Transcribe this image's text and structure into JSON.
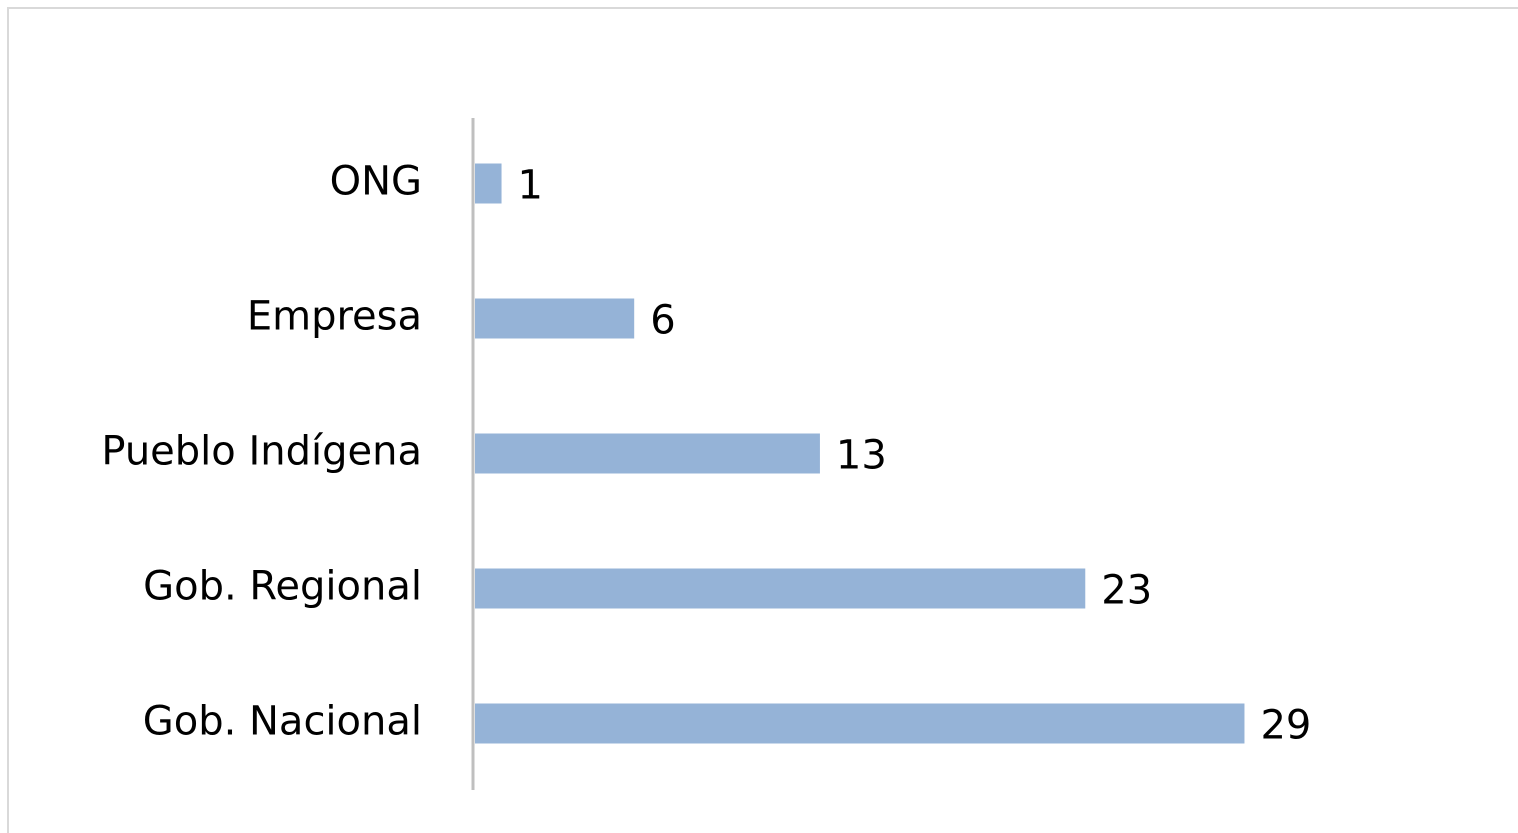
{
  "chart_data": {
    "type": "bar",
    "orientation": "horizontal",
    "categories": [
      "ONG",
      "Empresa",
      "Pueblo Indígena",
      "Gob. Regional",
      "Gob. Nacional"
    ],
    "values": [
      1,
      6,
      13,
      23,
      29
    ],
    "color": "#95b3d7",
    "xlim": [
      0,
      30
    ],
    "grid": false
  }
}
